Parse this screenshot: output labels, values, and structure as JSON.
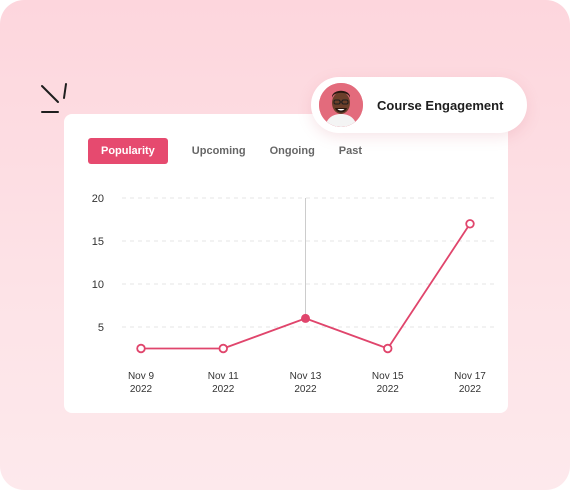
{
  "header": {
    "title": "Course Engagement",
    "avatar_icon": "person-avatar-icon"
  },
  "tabs": [
    {
      "label": "Popularity",
      "active": true
    },
    {
      "label": "Upcoming",
      "active": false
    },
    {
      "label": "Ongoing",
      "active": false
    },
    {
      "label": "Past",
      "active": false
    }
  ],
  "colors": {
    "accent": "#e64a6f",
    "background": "#fdd6dd",
    "line": "#e0456c"
  },
  "chart_data": {
    "type": "line",
    "categories": [
      "Nov 9\n2022",
      "Nov 11\n2022",
      "Nov 13\n2022",
      "Nov 15\n2022",
      "Nov 17\n2022"
    ],
    "x_labels": [
      {
        "line1": "Nov 9",
        "line2": "2022"
      },
      {
        "line1": "Nov 11",
        "line2": "2022"
      },
      {
        "line1": "Nov 13",
        "line2": "2022"
      },
      {
        "line1": "Nov 15",
        "line2": "2022"
      },
      {
        "line1": "Nov 17",
        "line2": "2022"
      }
    ],
    "values": [
      2.5,
      2.5,
      6,
      2.5,
      17
    ],
    "highlight_index": 2,
    "yticks": [
      5,
      10,
      15,
      20
    ],
    "ylim": [
      0,
      20
    ],
    "grid": true,
    "title": "",
    "xlabel": "",
    "ylabel": ""
  }
}
